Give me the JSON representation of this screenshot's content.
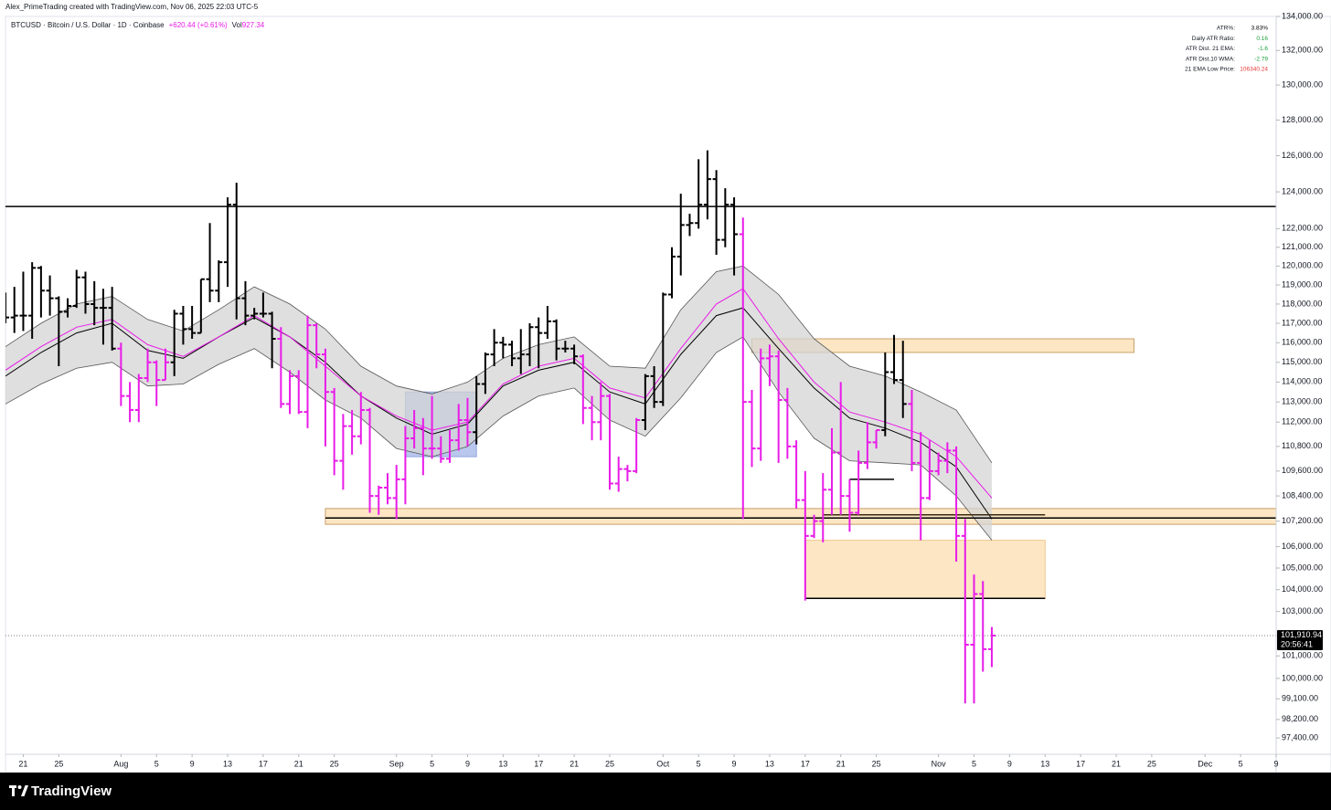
{
  "header": {
    "attribution": "Alex_PrimeTrading created with TradingView.com, Nov 06, 2025 22:03 UTC-5"
  },
  "chart_data": {
    "type": "ohlc",
    "title": "BTCUSD · Bitcoin / U.S. Dollar · 1D · Coinbase",
    "change": "+620.44 (+0.61%)",
    "volume_label": "Vol",
    "volume": "927.34",
    "label_color": "#e81ce8",
    "log_scale": true,
    "x": [
      "Jul 19",
      "Jul 20",
      "Jul 21",
      "Jul 22",
      "Jul 23",
      "Jul 24",
      "Jul 25",
      "Jul 26",
      "Jul 27",
      "Jul 28",
      "Jul 29",
      "Jul 30",
      "Jul 31",
      "Aug 1",
      "Aug 2",
      "Aug 3",
      "Aug 4",
      "Aug 5",
      "Aug 6",
      "Aug 7",
      "Aug 8",
      "Aug 9",
      "Aug 10",
      "Aug 11",
      "Aug 12",
      "Aug 13",
      "Aug 14",
      "Aug 15",
      "Aug 16",
      "Aug 17",
      "Aug 18",
      "Aug 19",
      "Aug 20",
      "Aug 21",
      "Aug 22",
      "Aug 23",
      "Aug 24",
      "Aug 25",
      "Aug 26",
      "Aug 27",
      "Aug 28",
      "Aug 29",
      "Aug 30",
      "Aug 31",
      "Sep 1",
      "Sep 2",
      "Sep 3",
      "Sep 4",
      "Sep 5",
      "Sep 6",
      "Sep 7",
      "Sep 8",
      "Sep 9",
      "Sep 10",
      "Sep 11",
      "Sep 12",
      "Sep 13",
      "Sep 14",
      "Sep 15",
      "Sep 16",
      "Sep 17",
      "Sep 18",
      "Sep 19",
      "Sep 20",
      "Sep 21",
      "Sep 22",
      "Sep 23",
      "Sep 24",
      "Sep 25",
      "Sep 26",
      "Sep 27",
      "Sep 28",
      "Sep 29",
      "Sep 30",
      "Oct 1",
      "Oct 2",
      "Oct 3",
      "Oct 4",
      "Oct 5",
      "Oct 6",
      "Oct 7",
      "Oct 8",
      "Oct 9",
      "Oct 10",
      "Oct 11",
      "Oct 12",
      "Oct 13",
      "Oct 14",
      "Oct 15",
      "Oct 16",
      "Oct 17",
      "Oct 18",
      "Oct 19",
      "Oct 20",
      "Oct 21",
      "Oct 22",
      "Oct 23",
      "Oct 24",
      "Oct 25",
      "Oct 26",
      "Oct 27",
      "Oct 28",
      "Oct 29",
      "Oct 30",
      "Oct 31",
      "Nov 1",
      "Nov 2",
      "Nov 3",
      "Nov 4",
      "Nov 5",
      "Nov 6",
      "Nov 7"
    ],
    "open": [
      117900,
      117300,
      117400,
      117400,
      119900,
      118700,
      118300,
      117600,
      117900,
      119400,
      118000,
      117800,
      117800,
      115700,
      113300,
      112600,
      114200,
      115000,
      114100,
      115000,
      117500,
      116700,
      116500,
      119300,
      118700,
      120200,
      123300,
      118300,
      117400,
      117500,
      117500,
      116200,
      112900,
      114300,
      112500,
      116900,
      115400,
      113500,
      110100,
      111800,
      111300,
      112600,
      108400,
      108800,
      108300,
      109200,
      111200,
      111700,
      110700,
      110700,
      110200,
      111100,
      112100,
      111500,
      113900,
      115400,
      116000,
      115900,
      115200,
      115400,
      116800,
      116500,
      117100,
      115700,
      115700,
      115300,
      112700,
      112000,
      113300,
      109000,
      109700,
      109600,
      112100,
      114300,
      113000,
      118500,
      120500,
      122200,
      122300,
      123300,
      124700,
      121400,
      123300,
      121700,
      113000,
      110700,
      115200,
      115300,
      113100,
      110800,
      108200,
      106500,
      107200,
      108700,
      110500,
      108400,
      107600,
      110000,
      111000,
      111600,
      114500,
      114100,
      112900,
      110000,
      108300,
      109600,
      110100,
      110600,
      106500,
      101500,
      103800,
      101300
    ],
    "high": [
      118600,
      118900,
      119700,
      120200,
      120000,
      119500,
      118400,
      118300,
      119800,
      119700,
      119200,
      118800,
      118900,
      116000,
      114000,
      114400,
      115700,
      115100,
      115700,
      117700,
      117900,
      117900,
      119300,
      122300,
      120300,
      123700,
      124500,
      119200,
      117800,
      118600,
      117600,
      116800,
      114600,
      114600,
      117400,
      117000,
      115700,
      113700,
      112400,
      112600,
      113500,
      112700,
      108900,
      109500,
      109900,
      111800,
      112600,
      112200,
      113300,
      111300,
      111600,
      112900,
      113200,
      114300,
      115500,
      116700,
      116300,
      116100,
      116700,
      117000,
      117300,
      117900,
      117200,
      116100,
      115900,
      115400,
      113300,
      114000,
      113400,
      110300,
      109900,
      112200,
      114400,
      114800,
      118600,
      121000,
      123900,
      122800,
      125800,
      126300,
      125200,
      124200,
      123700,
      122600,
      113600,
      115700,
      115900,
      115600,
      113700,
      111100,
      109600,
      107500,
      109500,
      111700,
      114000,
      109200,
      110600,
      112000,
      111600,
      115500,
      116400,
      116100,
      113600,
      111500,
      111100,
      110500,
      111000,
      110800,
      107300,
      104700,
      104400,
      102300
    ],
    "low": [
      117000,
      116500,
      116600,
      116200,
      117300,
      117400,
      114800,
      117300,
      117800,
      117500,
      116900,
      115900,
      115600,
      112800,
      112000,
      112000,
      114000,
      112800,
      114100,
      114300,
      115900,
      116200,
      116500,
      118100,
      118100,
      118900,
      117200,
      116900,
      117200,
      117300,
      114700,
      112700,
      112400,
      112400,
      111700,
      114700,
      110800,
      109400,
      108700,
      110400,
      110900,
      107600,
      107500,
      108000,
      107300,
      108000,
      110700,
      109400,
      110200,
      110000,
      110000,
      110600,
      110800,
      110900,
      113400,
      114800,
      115200,
      114800,
      114400,
      114800,
      114700,
      116200,
      115100,
      115500,
      114900,
      111900,
      111100,
      111100,
      108700,
      108600,
      109100,
      109500,
      111600,
      112700,
      112800,
      118300,
      119500,
      121600,
      122000,
      122500,
      120600,
      121000,
      119500,
      107300,
      109800,
      110100,
      113800,
      110000,
      110200,
      107800,
      103500,
      106400,
      106200,
      107500,
      107500,
      106700,
      107500,
      109700,
      110700,
      111300,
      113900,
      112200,
      109600,
      106300,
      108200,
      109400,
      109500,
      105300,
      98900,
      98900,
      100300,
      100500
    ],
    "close": [
      117300,
      117400,
      117400,
      119900,
      118700,
      118300,
      117600,
      117900,
      119400,
      118000,
      117800,
      117800,
      115700,
      113300,
      112600,
      114200,
      115000,
      114100,
      115000,
      117500,
      116700,
      116500,
      119300,
      118700,
      120200,
      123300,
      118300,
      117400,
      117500,
      117500,
      116200,
      112900,
      114300,
      112500,
      116900,
      115400,
      113500,
      110100,
      111800,
      111300,
      112600,
      108400,
      108800,
      108300,
      109200,
      111200,
      111700,
      110700,
      110700,
      110200,
      111100,
      112100,
      111500,
      113900,
      115400,
      116000,
      115900,
      115200,
      115400,
      116800,
      116500,
      117100,
      115700,
      115700,
      115300,
      112700,
      112000,
      113300,
      109000,
      109700,
      109600,
      112100,
      114300,
      113000,
      118500,
      120500,
      122200,
      122300,
      123300,
      124700,
      121400,
      123300,
      121700,
      113000,
      110700,
      115200,
      115300,
      113100,
      110800,
      108200,
      106500,
      107200,
      108700,
      110500,
      108400,
      107600,
      110000,
      111000,
      111600,
      114500,
      114100,
      112900,
      110000,
      108300,
      109600,
      110100,
      110600,
      106500,
      101500,
      103800,
      101300,
      101910.94
    ],
    "colors": [
      "#000000",
      "#000000",
      "#000000",
      "#000000",
      "#000000",
      "#000000",
      "#000000",
      "#000000",
      "#000000",
      "#000000",
      "#000000",
      "#000000",
      "#000000",
      "#e81ce8",
      "#e81ce8",
      "#e81ce8",
      "#e81ce8",
      "#e81ce8",
      "#e81ce8",
      "#000000",
      "#000000",
      "#000000",
      "#000000",
      "#000000",
      "#000000",
      "#000000",
      "#000000",
      "#000000",
      "#000000",
      "#000000",
      "#000000",
      "#e81ce8",
      "#e81ce8",
      "#e81ce8",
      "#e81ce8",
      "#e81ce8",
      "#e81ce8",
      "#e81ce8",
      "#e81ce8",
      "#e81ce8",
      "#e81ce8",
      "#e81ce8",
      "#e81ce8",
      "#e81ce8",
      "#e81ce8",
      "#e81ce8",
      "#e81ce8",
      "#e81ce8",
      "#e81ce8",
      "#e81ce8",
      "#e81ce8",
      "#e81ce8",
      "#e81ce8",
      "#000000",
      "#000000",
      "#000000",
      "#000000",
      "#000000",
      "#000000",
      "#000000",
      "#000000",
      "#000000",
      "#000000",
      "#000000",
      "#000000",
      "#e81ce8",
      "#e81ce8",
      "#e81ce8",
      "#e81ce8",
      "#e81ce8",
      "#e81ce8",
      "#e81ce8",
      "#000000",
      "#000000",
      "#000000",
      "#000000",
      "#000000",
      "#000000",
      "#000000",
      "#000000",
      "#000000",
      "#000000",
      "#000000",
      "#e81ce8",
      "#e81ce8",
      "#e81ce8",
      "#e81ce8",
      "#e81ce8",
      "#e81ce8",
      "#e81ce8",
      "#e81ce8",
      "#e81ce8",
      "#e81ce8",
      "#e81ce8",
      "#e81ce8",
      "#e81ce8",
      "#e81ce8",
      "#e81ce8",
      "#e81ce8",
      "#000000",
      "#000000",
      "#000000",
      "#e81ce8",
      "#e81ce8",
      "#e81ce8",
      "#e81ce8",
      "#e81ce8",
      "#e81ce8",
      "#e81ce8",
      "#e81ce8",
      "#e81ce8",
      "#e81ce8"
    ],
    "xlim": [
      "Jul 19",
      "Dec 9"
    ],
    "xticks": [
      {
        "value": "Jul 21",
        "label": "21"
      },
      {
        "value": "Jul 25",
        "label": "25"
      },
      {
        "value": "Aug 1",
        "label": "Aug"
      },
      {
        "value": "Aug 5",
        "label": "5"
      },
      {
        "value": "Aug 9",
        "label": "9"
      },
      {
        "value": "Aug 13",
        "label": "13"
      },
      {
        "value": "Aug 17",
        "label": "17"
      },
      {
        "value": "Aug 21",
        "label": "21"
      },
      {
        "value": "Aug 25",
        "label": "25"
      },
      {
        "value": "Sep 1",
        "label": "Sep"
      },
      {
        "value": "Sep 5",
        "label": "5"
      },
      {
        "value": "Sep 9",
        "label": "9"
      },
      {
        "value": "Sep 13",
        "label": "13"
      },
      {
        "value": "Sep 17",
        "label": "17"
      },
      {
        "value": "Sep 21",
        "label": "21"
      },
      {
        "value": "Sep 25",
        "label": "25"
      },
      {
        "value": "Oct 1",
        "label": "Oct"
      },
      {
        "value": "Oct 5",
        "label": "5"
      },
      {
        "value": "Oct 9",
        "label": "9"
      },
      {
        "value": "Oct 13",
        "label": "13"
      },
      {
        "value": "Oct 17",
        "label": "17"
      },
      {
        "value": "Oct 21",
        "label": "21"
      },
      {
        "value": "Oct 25",
        "label": "25"
      },
      {
        "value": "Nov 1",
        "label": "Nov"
      },
      {
        "value": "Nov 5",
        "label": "5"
      },
      {
        "value": "Nov 9",
        "label": "9"
      },
      {
        "value": "Nov 13",
        "label": "13"
      },
      {
        "value": "Nov 17",
        "label": "17"
      },
      {
        "value": "Nov 21",
        "label": "21"
      },
      {
        "value": "Nov 25",
        "label": "25"
      },
      {
        "value": "Dec 1",
        "label": "Dec"
      },
      {
        "value": "Dec 5",
        "label": "5"
      },
      {
        "value": "Dec 9",
        "label": "9"
      }
    ],
    "ylim": [
      96700,
      134000
    ],
    "yticks": [
      {
        "value": 97400,
        "label": "97,400.00"
      },
      {
        "value": 98200,
        "label": "98,200.00"
      },
      {
        "value": 99100,
        "label": "99,100.00"
      },
      {
        "value": 100000,
        "label": "100,000.00"
      },
      {
        "value": 101000,
        "label": "101,000.00"
      },
      {
        "value": 103000,
        "label": "103,000.00"
      },
      {
        "value": 104000,
        "label": "104,000.00"
      },
      {
        "value": 105000,
        "label": "105,000.00"
      },
      {
        "value": 106000,
        "label": "106,000.00"
      },
      {
        "value": 107200,
        "label": "107,200.00"
      },
      {
        "value": 108400,
        "label": "108,400.00"
      },
      {
        "value": 109600,
        "label": "109,600.00"
      },
      {
        "value": 110800,
        "label": "110,800.00"
      },
      {
        "value": 112000,
        "label": "112,000.00"
      },
      {
        "value": 113000,
        "label": "113,000.00"
      },
      {
        "value": 114000,
        "label": "114,000.00"
      },
      {
        "value": 115000,
        "label": "115,000.00"
      },
      {
        "value": 116000,
        "label": "116,000.00"
      },
      {
        "value": 117000,
        "label": "117,000.00"
      },
      {
        "value": 118000,
        "label": "118,000.00"
      },
      {
        "value": 119000,
        "label": "119,000.00"
      },
      {
        "value": 120000,
        "label": "120,000.00"
      },
      {
        "value": 121000,
        "label": "121,000.00"
      },
      {
        "value": 122000,
        "label": "122,000.00"
      },
      {
        "value": 124000,
        "label": "124,000.00"
      },
      {
        "value": 126000,
        "label": "126,000.00"
      },
      {
        "value": 128000,
        "label": "128,000.00"
      },
      {
        "value": 130000,
        "label": "130,000.00"
      },
      {
        "value": 132000,
        "label": "132,000.00"
      },
      {
        "value": 134000,
        "label": "134,000.00"
      }
    ],
    "indicator": {
      "x": [
        "Jul 19",
        "Jul 23",
        "Jul 27",
        "Jul 31",
        "Aug 4",
        "Aug 8",
        "Aug 12",
        "Aug 16",
        "Aug 20",
        "Aug 24",
        "Aug 28",
        "Sep 1",
        "Sep 5",
        "Sep 9",
        "Sep 13",
        "Sep 17",
        "Sep 21",
        "Sep 25",
        "Sep 29",
        "Oct 3",
        "Oct 7",
        "Oct 10",
        "Oct 14",
        "Oct 18",
        "Oct 22",
        "Oct 26",
        "Oct 30",
        "Nov 3",
        "Nov 7"
      ],
      "upper": [
        115800,
        117000,
        118000,
        118400,
        117200,
        116600,
        117700,
        118900,
        118000,
        116700,
        114800,
        113800,
        113400,
        114000,
        115200,
        115900,
        116300,
        114800,
        114700,
        117700,
        119700,
        120000,
        118500,
        116200,
        114800,
        114300,
        113500,
        112600,
        110000
      ],
      "inner": [
        114300,
        115500,
        116500,
        117000,
        115600,
        115200,
        116300,
        117300,
        116300,
        115000,
        113300,
        112200,
        111400,
        111900,
        113800,
        114600,
        115000,
        113500,
        112900,
        115400,
        117400,
        117800,
        115700,
        113700,
        112200,
        111700,
        111000,
        109800,
        107300
      ],
      "ema": [
        114600,
        115800,
        116800,
        117200,
        115900,
        115300,
        116300,
        117400,
        116300,
        114800,
        113300,
        112300,
        111600,
        112000,
        113900,
        114800,
        115200,
        113700,
        113200,
        115700,
        118000,
        118800,
        116200,
        114000,
        112500,
        112000,
        111400,
        110300,
        108300
      ],
      "lower": [
        112900,
        113900,
        114700,
        115000,
        113800,
        113900,
        114900,
        115700,
        114500,
        113100,
        112200,
        110700,
        110300,
        110800,
        112300,
        113300,
        113700,
        112100,
        111300,
        113200,
        115500,
        116300,
        113500,
        111200,
        110100,
        110000,
        109900,
        108400,
        106300
      ],
      "fill_color": "#d4d4d4",
      "edge_color": "#555555",
      "inner_color": "#000000",
      "ema_color": "#e81ce8"
    },
    "zones": [
      {
        "top": 116200,
        "bottom": 115500,
        "start": "Oct 11",
        "end": "Nov 23",
        "fill": "#fde0b5",
        "stroke": "#c8a06a"
      },
      {
        "top": 107800,
        "bottom": 107050,
        "start": "Aug 24",
        "end": "Dec 9",
        "fill": "#fde0b5",
        "stroke": "#c8a06a"
      },
      {
        "top": 106300,
        "bottom": 103600,
        "start": "Oct 17",
        "end": "Nov 13",
        "fill": "#fde0b5",
        "stroke": "#f0c890"
      },
      {
        "top": 113500,
        "bottom": 110300,
        "start": "Sep 2",
        "end": "Sep 10",
        "fill": "#a8b8e8",
        "stroke": "#8fa3dc"
      }
    ],
    "levels": [
      {
        "value": 123200,
        "start": "Jul 19",
        "end": "Dec 9",
        "color": "#000000"
      },
      {
        "value": 107350,
        "start": "Aug 24",
        "end": "Dec 9",
        "color": "#000000"
      },
      {
        "value": 107500,
        "start": "Oct 19",
        "end": "Nov 13",
        "color": "#3a2a10"
      },
      {
        "value": 109200,
        "start": "Oct 22",
        "end": "Oct 27",
        "color": "#000000"
      },
      {
        "value": 103600,
        "start": "Oct 17",
        "end": "Nov 13",
        "color": "#000000"
      }
    ],
    "last_price": {
      "value": 101910.94,
      "label": "101,910.94"
    },
    "countdown": "20:56:41",
    "stats": [
      {
        "label": "ATR%:",
        "value": "3.83%",
        "color": "#000000"
      },
      {
        "label": "Daily ATR Ratio:",
        "value": "0.16",
        "color": "#1a9e3a"
      },
      {
        "label": "ATR Dist. 21 EMA:",
        "value": "-1.6",
        "color": "#1a9e3a"
      },
      {
        "label": "ATR Dist.10 WMA:",
        "value": "-2.79",
        "color": "#1a9e3a"
      },
      {
        "label": "21 EMA Low Price:",
        "value": "106340.24",
        "color": "#e53935"
      }
    ]
  },
  "footer": {
    "brand": "TradingView"
  }
}
